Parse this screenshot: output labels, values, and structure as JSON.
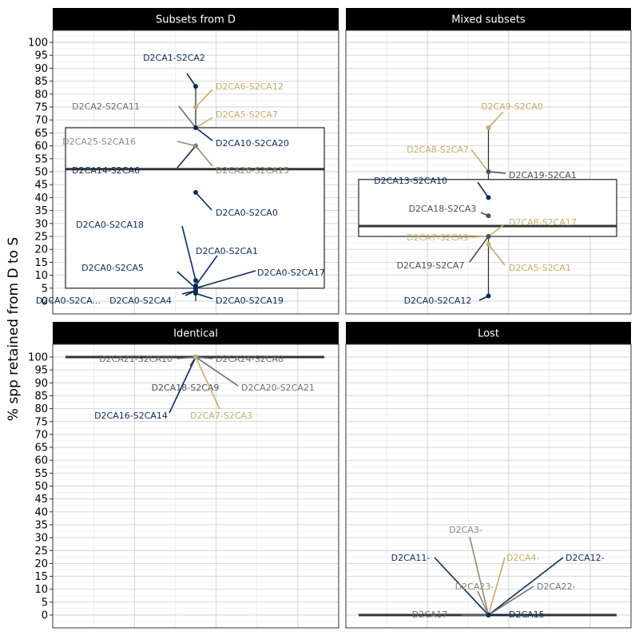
{
  "chart_data": {
    "type": "boxplot",
    "ylabel": "% spp retained from D to S",
    "ylim": [
      -2,
      105
    ],
    "yticks": [
      0,
      5,
      10,
      15,
      20,
      25,
      30,
      35,
      40,
      45,
      50,
      55,
      60,
      65,
      70,
      75,
      80,
      85,
      90,
      95,
      100
    ],
    "grid": true,
    "colors": {
      "navy": "#0b2b5a",
      "slate": "#4a4f5e",
      "gray": "#6e6e6e",
      "taupe": "#8f8a78",
      "gold": "#c5ae6a",
      "box": "#333333",
      "strip": "#000000"
    },
    "facets": [
      {
        "title": "Subsets from D",
        "box": {
          "q1": 5,
          "median": 51,
          "q3": 67
        },
        "whisker": [
          0,
          83
        ],
        "points": [
          {
            "label": "D2CA1-S2CA2",
            "y": 83,
            "color": "navy"
          },
          {
            "label": "D2CA6-S2CA12",
            "y": 75,
            "color": "gold"
          },
          {
            "label": "D2CA2-S2CA11",
            "y": 67,
            "color": "gray"
          },
          {
            "label": "D2CA5-S2CA7",
            "y": 67,
            "color": "gold"
          },
          {
            "label": "D2CA25-S2CA16",
            "y": 60,
            "color": "taupe"
          },
          {
            "label": "D2CA10-S2CA20",
            "y": 67,
            "color": "navy"
          },
          {
            "label": "D2CA14-S2CA6",
            "y": 60,
            "color": "navy"
          },
          {
            "label": "D2CA26-S2CA15",
            "y": 60,
            "color": "taupe"
          },
          {
            "label": "D2CA0-S2CA0",
            "y": 42,
            "color": "navy"
          },
          {
            "label": "D2CA0-S2CA18",
            "y": 8,
            "color": "navy"
          },
          {
            "label": "D2CA0-S2CA1",
            "y": 6,
            "color": "navy"
          },
          {
            "label": "D2CA0-S2CA5",
            "y": 5,
            "color": "navy"
          },
          {
            "label": "D2CA0-S2CA17",
            "y": 5,
            "color": "navy"
          },
          {
            "label": "D2CA0-S2CA...",
            "y": 4,
            "color": "navy"
          },
          {
            "label": "D2CA0-S2CA4",
            "y": 4,
            "color": "navy"
          },
          {
            "label": "D2CA0-S2CA19",
            "y": 3,
            "color": "navy"
          }
        ]
      },
      {
        "title": "Mixed subsets",
        "box": {
          "q1": 25,
          "median": 29,
          "q3": 47
        },
        "whisker": [
          2,
          67
        ],
        "points": [
          {
            "label": "D2CA9-S2CA0",
            "y": 67,
            "color": "gold"
          },
          {
            "label": "D2CA8-S2CA7",
            "y": 50,
            "color": "gold"
          },
          {
            "label": "D2CA19-S2CA1",
            "y": 50,
            "color": "slate"
          },
          {
            "label": "D2CA13-S2CA10",
            "y": 40,
            "color": "navy"
          },
          {
            "label": "D2CA18-S2CA3",
            "y": 33,
            "color": "slate"
          },
          {
            "label": "D2CA8-S2CA17",
            "y": 25,
            "color": "gold"
          },
          {
            "label": "D2CA7-S2CA9",
            "y": 25,
            "color": "gold"
          },
          {
            "label": "D2CA19-S2CA7",
            "y": 25,
            "color": "slate"
          },
          {
            "label": "D2CA5-S2CA1",
            "y": 22,
            "color": "gold"
          },
          {
            "label": "D2CA0-S2CA12",
            "y": 2,
            "color": "navy"
          }
        ]
      },
      {
        "title": "Identical",
        "box": {
          "q1": 100,
          "median": 100,
          "q3": 100
        },
        "whisker": [
          100,
          100
        ],
        "points": [
          {
            "label": "D2CA21-S2CA10",
            "y": 100,
            "color": "gray"
          },
          {
            "label": "D2CA24-S2CA8",
            "y": 100,
            "color": "gray"
          },
          {
            "label": "D2CA18-S2CA9",
            "y": 100,
            "color": "slate"
          },
          {
            "label": "D2CA20-S2CA21",
            "y": 100,
            "color": "gray"
          },
          {
            "label": "D2CA16-S2CA14",
            "y": 100,
            "color": "navy"
          },
          {
            "label": "D2CA7-S2CA3",
            "y": 100,
            "color": "gold"
          }
        ]
      },
      {
        "title": "Lost",
        "box": {
          "q1": 0,
          "median": 0,
          "q3": 0
        },
        "whisker": [
          0,
          0
        ],
        "points": [
          {
            "label": "D2CA3-",
            "y": 0,
            "color": "taupe"
          },
          {
            "label": "D2CA11-",
            "y": 0,
            "color": "navy"
          },
          {
            "label": "D2CA4-",
            "y": 0,
            "color": "gold"
          },
          {
            "label": "D2CA12-",
            "y": 0,
            "color": "navy"
          },
          {
            "label": "D2CA23-",
            "y": 0,
            "color": "taupe"
          },
          {
            "label": "D2CA22-",
            "y": 0,
            "color": "gray"
          },
          {
            "label": "D2CA17",
            "y": 0,
            "color": "gray"
          },
          {
            "label": "D2CA15",
            "y": 0,
            "color": "navy"
          }
        ]
      }
    ]
  }
}
